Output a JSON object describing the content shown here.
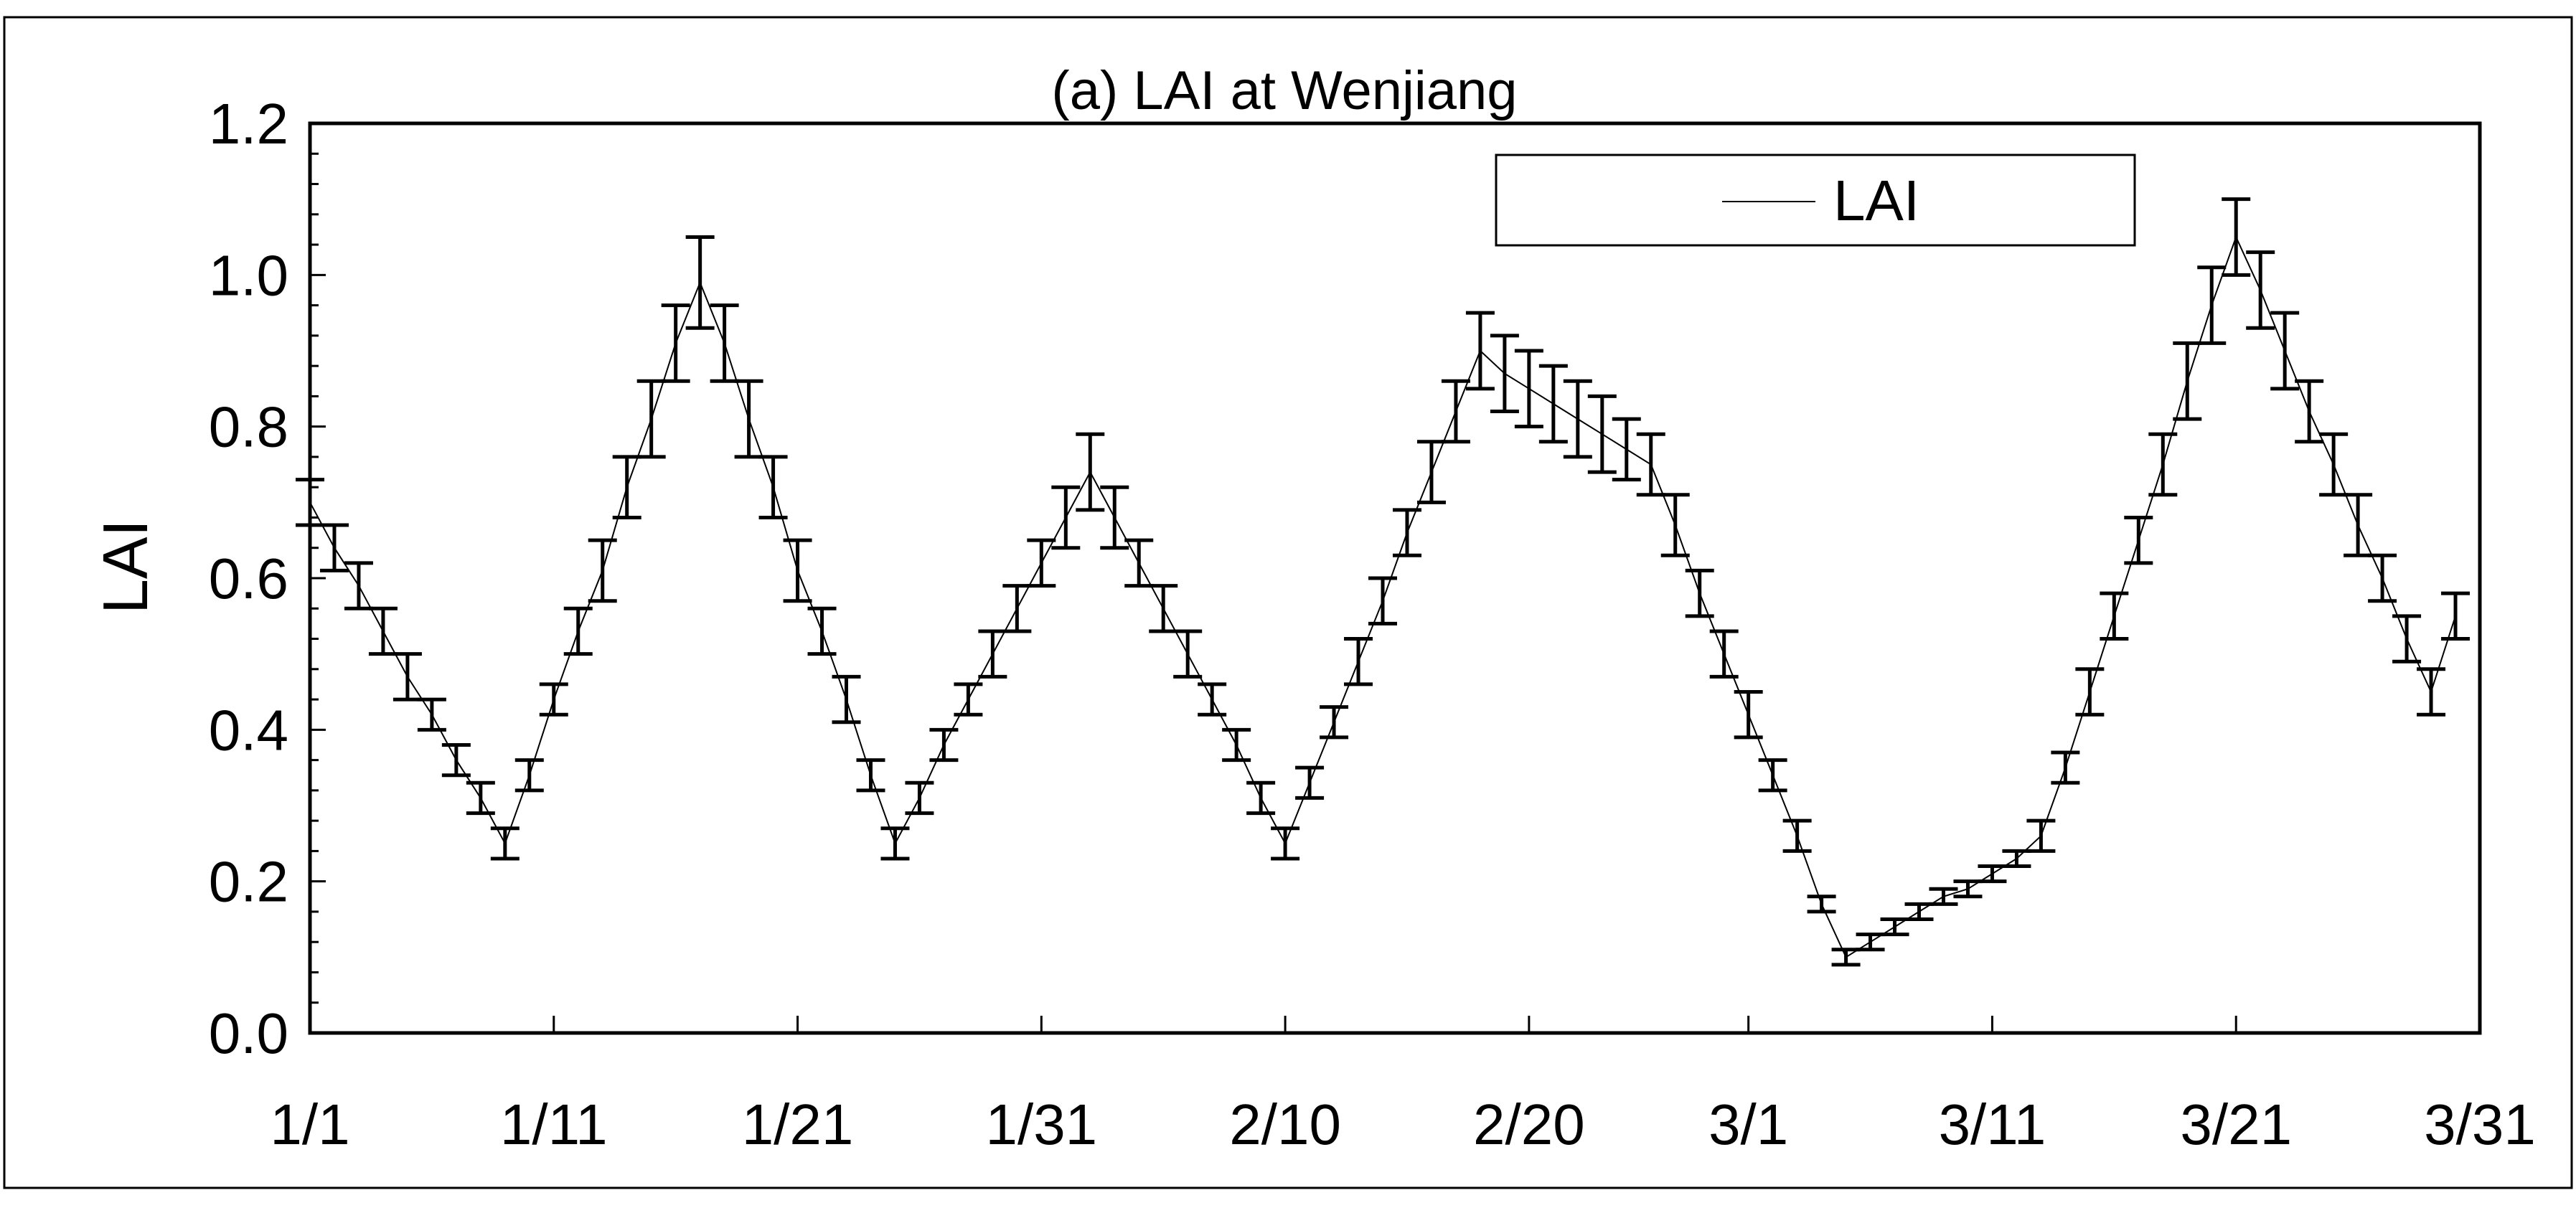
{
  "chart_data": {
    "type": "line",
    "title": "(a) LAI at Wenjiang",
    "xlabel": "",
    "ylabel": "LAI",
    "x_tick_labels": [
      "1/1",
      "1/11",
      "1/21",
      "1/31",
      "2/10",
      "2/20",
      "3/1",
      "3/11",
      "3/21",
      "3/31"
    ],
    "x_tick_days": [
      1,
      11,
      21,
      31,
      41,
      51,
      60,
      70,
      80,
      90
    ],
    "y_tick_labels": [
      "0.0",
      "0.2",
      "0.4",
      "0.6",
      "0.8",
      "1.0",
      "1.2"
    ],
    "ylim": [
      0,
      1.2
    ],
    "xlim": [
      1,
      90
    ],
    "legend": {
      "position": "top-right",
      "label": "LAI"
    },
    "series": [
      {
        "name": "LAI",
        "color": "#000000",
        "error_bars": "yes",
        "x": [
          1,
          2,
          3,
          4,
          5,
          6,
          7,
          8,
          9,
          10,
          11,
          12,
          13,
          14,
          15,
          16,
          17,
          18,
          19,
          20,
          21,
          22,
          23,
          24,
          25,
          26,
          27,
          28,
          29,
          30,
          31,
          32,
          33,
          34,
          35,
          36,
          37,
          38,
          39,
          40,
          41,
          42,
          43,
          44,
          45,
          46,
          47,
          48,
          49,
          50,
          51,
          52,
          53,
          54,
          55,
          56,
          57,
          58,
          59,
          60,
          61,
          62,
          63,
          64,
          65,
          66,
          67,
          68,
          69,
          70,
          71,
          72,
          73,
          74,
          75,
          76,
          77,
          78,
          79,
          80,
          81,
          82,
          83,
          84,
          85,
          86,
          87,
          88,
          89
        ],
        "y": [
          0.7,
          0.64,
          0.59,
          0.53,
          0.47,
          0.42,
          0.36,
          0.31,
          0.25,
          0.34,
          0.44,
          0.53,
          0.61,
          0.72,
          0.81,
          0.91,
          0.99,
          0.91,
          0.81,
          0.72,
          0.61,
          0.53,
          0.44,
          0.34,
          0.25,
          0.31,
          0.38,
          0.44,
          0.5,
          0.56,
          0.62,
          0.68,
          0.74,
          0.68,
          0.62,
          0.56,
          0.5,
          0.44,
          0.38,
          0.31,
          0.25,
          0.33,
          0.41,
          0.49,
          0.57,
          0.66,
          0.74,
          0.82,
          0.9,
          0.87,
          0.85,
          0.83,
          0.81,
          0.79,
          0.77,
          0.75,
          0.67,
          0.58,
          0.5,
          0.42,
          0.34,
          0.26,
          0.17,
          0.1,
          0.12,
          0.14,
          0.16,
          0.18,
          0.19,
          0.21,
          0.23,
          0.26,
          0.35,
          0.45,
          0.55,
          0.65,
          0.75,
          0.86,
          0.96,
          1.05,
          0.98,
          0.9,
          0.82,
          0.75,
          0.67,
          0.6,
          0.52,
          0.45,
          0.55
        ],
        "err": [
          0.03,
          0.03,
          0.03,
          0.03,
          0.03,
          0.02,
          0.02,
          0.02,
          0.02,
          0.02,
          0.02,
          0.03,
          0.04,
          0.04,
          0.05,
          0.05,
          0.06,
          0.05,
          0.05,
          0.04,
          0.04,
          0.03,
          0.03,
          0.02,
          0.02,
          0.02,
          0.02,
          0.02,
          0.03,
          0.03,
          0.03,
          0.04,
          0.05,
          0.04,
          0.03,
          0.03,
          0.03,
          0.02,
          0.02,
          0.02,
          0.02,
          0.02,
          0.02,
          0.03,
          0.03,
          0.03,
          0.04,
          0.04,
          0.05,
          0.05,
          0.05,
          0.05,
          0.05,
          0.05,
          0.04,
          0.04,
          0.04,
          0.03,
          0.03,
          0.03,
          0.02,
          0.02,
          0.01,
          0.01,
          0.01,
          0.01,
          0.01,
          0.01,
          0.01,
          0.01,
          0.01,
          0.02,
          0.02,
          0.03,
          0.03,
          0.03,
          0.04,
          0.05,
          0.05,
          0.05,
          0.05,
          0.05,
          0.04,
          0.04,
          0.04,
          0.03,
          0.03,
          0.03,
          0.03
        ]
      }
    ]
  }
}
